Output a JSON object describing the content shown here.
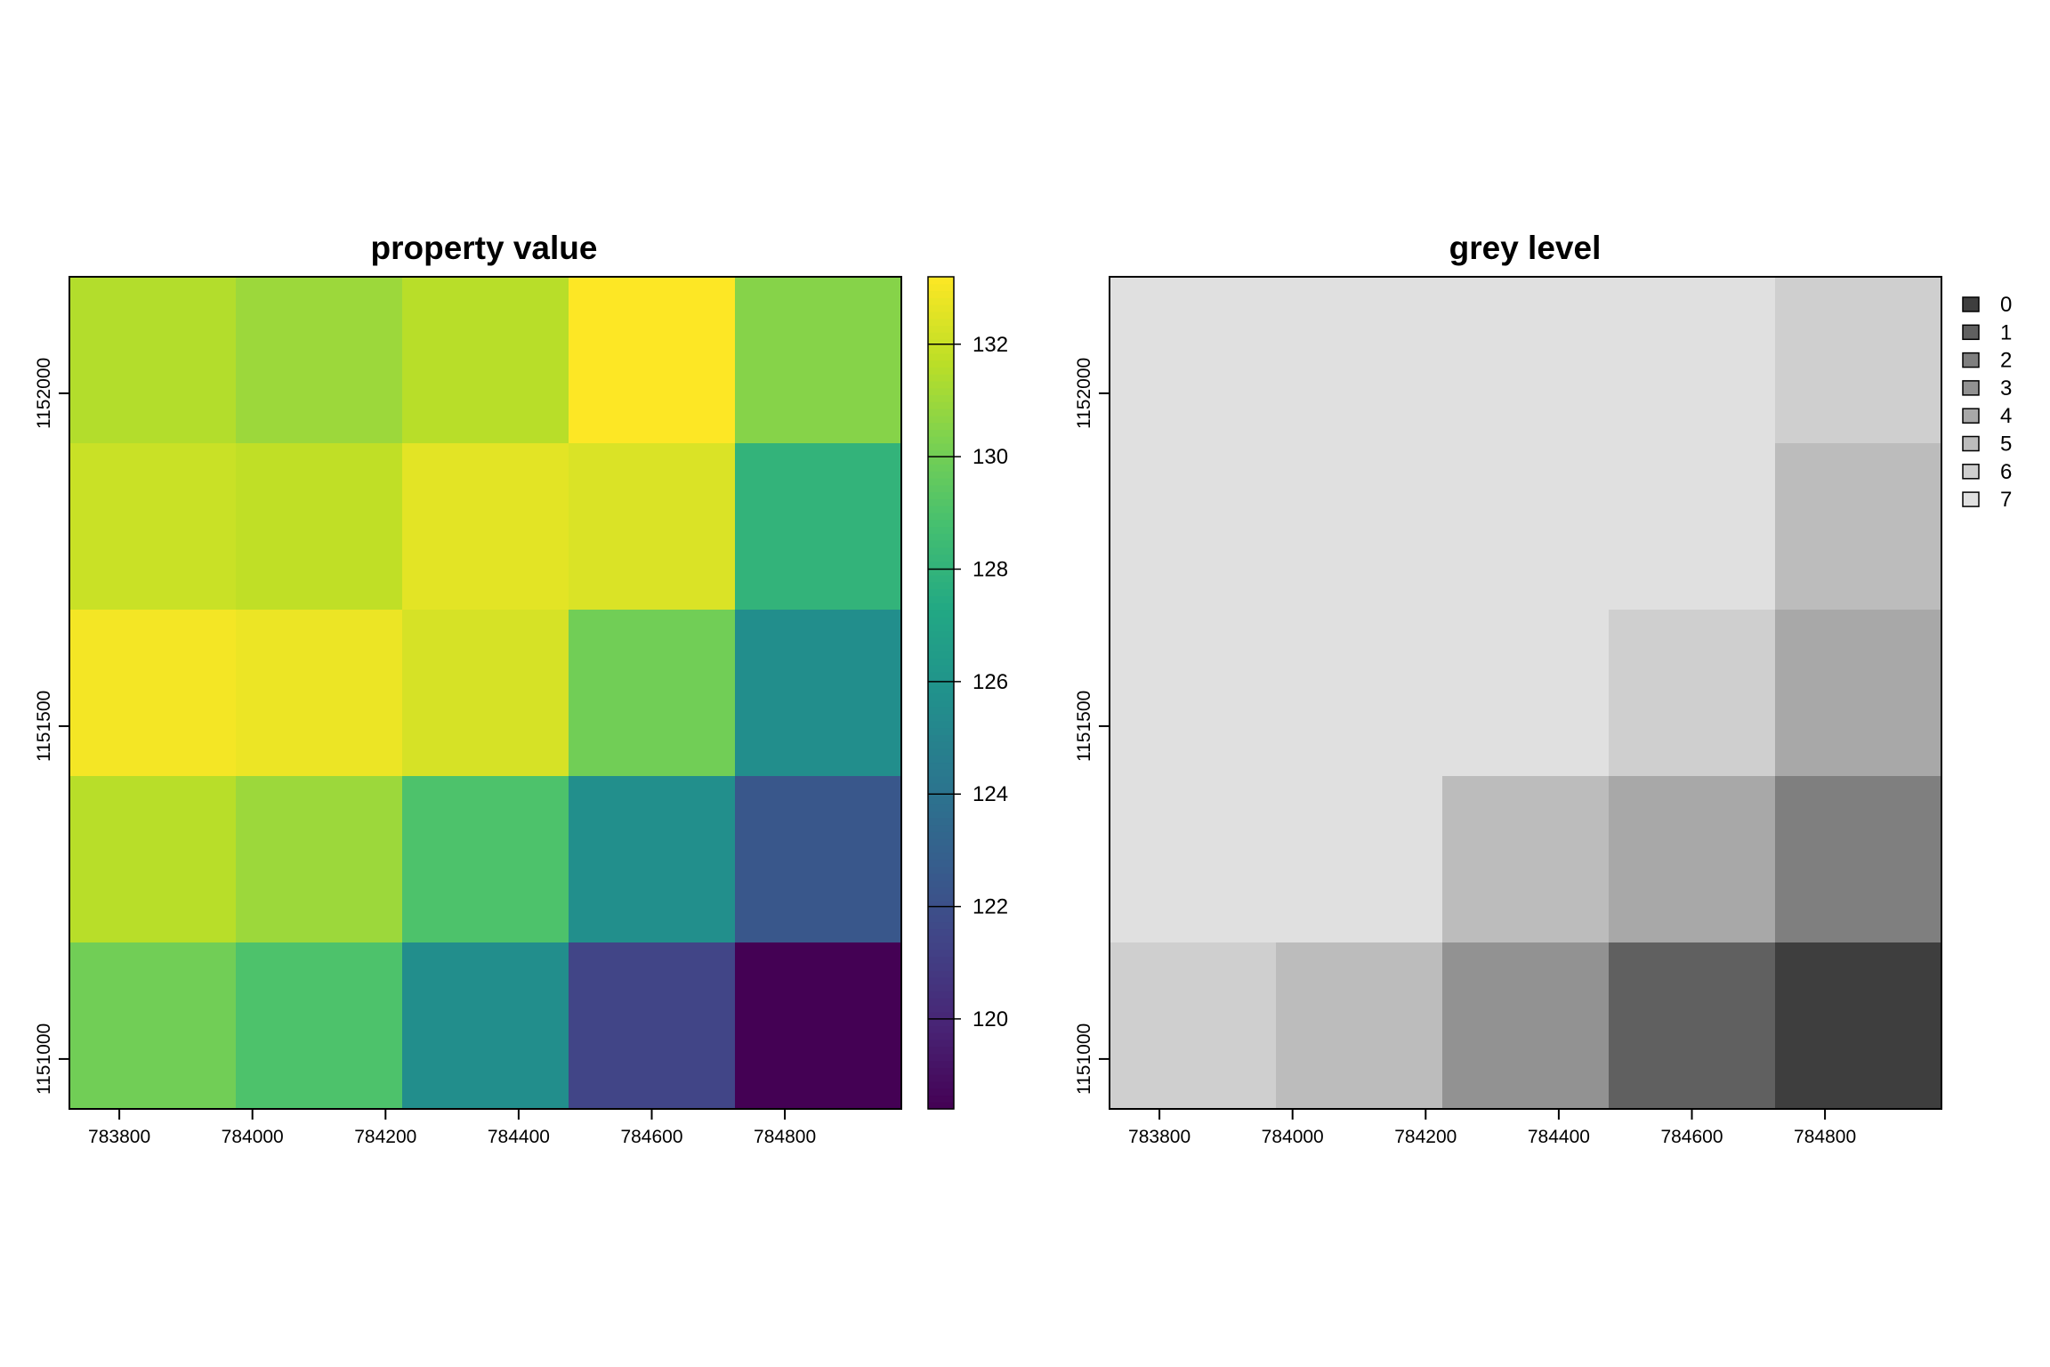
{
  "chart_data": [
    {
      "type": "heatmap",
      "title": "property value",
      "xlabel": "",
      "ylabel": "",
      "x_ticks": [
        783800,
        784000,
        784200,
        784400,
        784600,
        784800
      ],
      "y_ticks": [
        1151000,
        1151500,
        1152000
      ],
      "xlim": [
        783725,
        784975
      ],
      "ylim": [
        1150925,
        1152175
      ],
      "cell_x_centers": [
        783850,
        784100,
        784350,
        784600,
        784850
      ],
      "cell_y_centers": [
        1152050,
        1151800,
        1151550,
        1151300,
        1151050
      ],
      "values": [
        [
          131.5,
          131.0,
          131.6,
          133.2,
          130.5
        ],
        [
          132.0,
          131.8,
          132.6,
          132.4,
          128.0
        ],
        [
          133.0,
          132.8,
          132.3,
          130.0,
          125.6
        ],
        [
          131.6,
          131.0,
          129.0,
          125.7,
          122.4
        ],
        [
          130.0,
          129.0,
          125.6,
          121.4,
          118.4
        ]
      ],
      "colorbar": {
        "min": 118.4,
        "max": 133.2,
        "ticks": [
          120,
          122,
          124,
          126,
          128,
          130,
          132
        ],
        "palette": "viridis"
      }
    },
    {
      "type": "heatmap",
      "title": "grey level",
      "xlabel": "",
      "ylabel": "",
      "x_ticks": [
        783800,
        784000,
        784200,
        784400,
        784600,
        784800
      ],
      "y_ticks": [
        1151000,
        1151500,
        1152000
      ],
      "xlim": [
        783725,
        784975
      ],
      "ylim": [
        1150925,
        1152175
      ],
      "cell_x_centers": [
        783850,
        784100,
        784350,
        784600,
        784850
      ],
      "cell_y_centers": [
        1152050,
        1151800,
        1151550,
        1151300,
        1151050
      ],
      "values": [
        [
          7,
          7,
          7,
          7,
          6
        ],
        [
          7,
          7,
          7,
          7,
          5
        ],
        [
          7,
          7,
          7,
          6,
          4
        ],
        [
          7,
          7,
          5,
          4,
          2
        ],
        [
          6,
          5,
          3,
          1,
          0
        ]
      ],
      "legend": {
        "position": "right",
        "entries": [
          "0",
          "1",
          "2",
          "3",
          "4",
          "5",
          "6",
          "7"
        ]
      },
      "level_colors": [
        "#3e3e3e",
        "#606060",
        "#7f7f7f",
        "#929292",
        "#a8a8a8",
        "#bcbcbc",
        "#cfcfcf",
        "#e0e0e0"
      ]
    }
  ]
}
